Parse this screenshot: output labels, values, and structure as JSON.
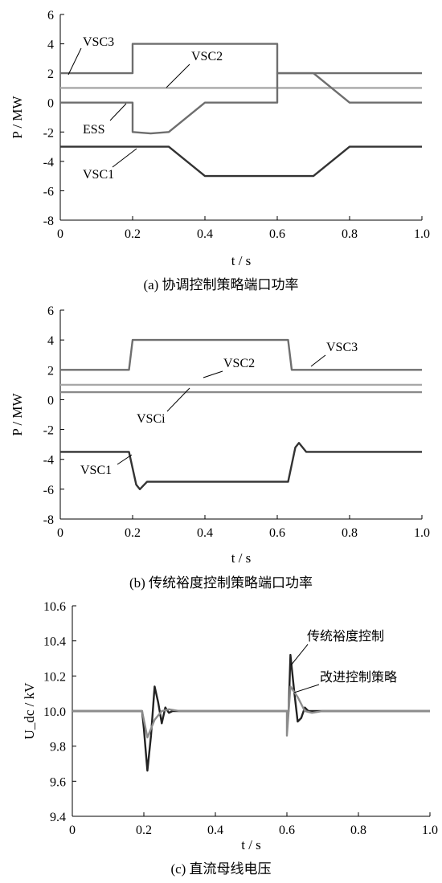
{
  "chart_data": [
    {
      "type": "line",
      "caption": "(a)  协调控制策略端口功率",
      "xlabel": "t / s",
      "ylabel": "P / MW",
      "xlim": [
        0,
        1.0
      ],
      "ylim": [
        -8,
        6
      ],
      "xticks": [
        "0",
        "0.2",
        "0.4",
        "0.6",
        "0.8",
        "1.0"
      ],
      "yticks": [
        "6",
        "4",
        "2",
        "0",
        "-2",
        "-4",
        "-6",
        "-8"
      ],
      "annotations": [
        "VSC3",
        "VSC2",
        "ESS",
        "VSC1"
      ],
      "series": [
        {
          "name": "VSC3",
          "color": "#6e6e6e",
          "x": [
            0,
            0.2,
            0.2,
            0.6,
            0.6,
            1.0
          ],
          "y": [
            2,
            2,
            4,
            4,
            2,
            2
          ]
        },
        {
          "name": "VSC2",
          "color": "#a8a8a8",
          "x": [
            0,
            1.0
          ],
          "y": [
            1,
            1
          ]
        },
        {
          "name": "ESS",
          "color": "#6e6e6e",
          "x": [
            0,
            0.2,
            0.2,
            0.25,
            0.3,
            0.4,
            0.6,
            0.6,
            0.7,
            0.8,
            1.0
          ],
          "y": [
            0,
            0,
            -2,
            -2.1,
            -2,
            0,
            0,
            2,
            2,
            0,
            0
          ]
        },
        {
          "name": "VSC1",
          "color": "#333333",
          "x": [
            0,
            0.2,
            0.3,
            0.4,
            0.6,
            0.7,
            0.8,
            1.0
          ],
          "y": [
            -3,
            -3,
            -3,
            -5,
            -5,
            -5,
            -3,
            -3
          ]
        }
      ]
    },
    {
      "type": "line",
      "caption": "(b)  传统裕度控制策略端口功率",
      "xlabel": "t / s",
      "ylabel": "P / MW",
      "xlim": [
        0,
        1.0
      ],
      "ylim": [
        -8,
        6
      ],
      "xticks": [
        "0",
        "0.2",
        "0.4",
        "0.6",
        "0.8",
        "1.0"
      ],
      "yticks": [
        "6",
        "4",
        "2",
        "0",
        "-2",
        "-4",
        "-6",
        "-8"
      ],
      "annotations": [
        "VSC2",
        "VSC3",
        "VSCi",
        "VSC1"
      ],
      "series": [
        {
          "name": "VSC3",
          "color": "#6e6e6e",
          "x": [
            0,
            0.19,
            0.2,
            0.63,
            0.64,
            1.0
          ],
          "y": [
            2,
            2,
            4,
            4,
            2,
            2
          ]
        },
        {
          "name": "VSC2",
          "color": "#a8a8a8",
          "x": [
            0,
            1.0
          ],
          "y": [
            1,
            1
          ]
        },
        {
          "name": "VSCi",
          "color": "#8a8a8a",
          "x": [
            0,
            1.0
          ],
          "y": [
            0.5,
            0.5
          ]
        },
        {
          "name": "VSC1",
          "color": "#333333",
          "x": [
            0,
            0.19,
            0.21,
            0.22,
            0.24,
            0.63,
            0.65,
            0.66,
            0.68,
            1.0
          ],
          "y": [
            -3.5,
            -3.5,
            -5.7,
            -6,
            -5.5,
            -5.5,
            -3.2,
            -2.9,
            -3.5,
            -3.5
          ]
        }
      ]
    },
    {
      "type": "line",
      "caption": "(c)  直流母线电压",
      "xlabel": "t / s",
      "ylabel": "U_dc / kV",
      "xlim": [
        0,
        1.0
      ],
      "ylim": [
        9.4,
        10.6
      ],
      "xticks": [
        "0",
        "0.2",
        "0.4",
        "0.6",
        "0.8",
        "1.0"
      ],
      "yticks": [
        "10.6",
        "10.4",
        "10.2",
        "10.0",
        "9.8",
        "9.6",
        "9.4"
      ],
      "annotations": [
        "传统裕度控制",
        "改进控制策略"
      ],
      "series": [
        {
          "name": "传统裕度控制",
          "color": "#222222",
          "x": [
            0,
            0.195,
            0.2,
            0.21,
            0.22,
            0.23,
            0.24,
            0.25,
            0.26,
            0.27,
            0.28,
            0.6,
            0.605,
            0.61,
            0.62,
            0.63,
            0.64,
            0.65,
            0.66,
            0.67,
            1.0
          ],
          "y": [
            10.0,
            10.0,
            9.9,
            9.66,
            9.86,
            10.14,
            10.05,
            9.93,
            10.02,
            9.99,
            10.0,
            10.0,
            10.0,
            10.32,
            10.12,
            9.94,
            9.96,
            10.02,
            10.0,
            10.0,
            10.0
          ]
        },
        {
          "name": "改进控制策略",
          "color": "#8c8c8c",
          "x": [
            0,
            0.195,
            0.2,
            0.21,
            0.23,
            0.25,
            0.27,
            0.3,
            0.6,
            0.6,
            0.61,
            0.63,
            0.65,
            0.67,
            0.7,
            1.0
          ],
          "y": [
            10.0,
            10.0,
            9.95,
            9.85,
            9.95,
            10.0,
            10.01,
            10.0,
            10.0,
            9.86,
            10.14,
            10.08,
            10.0,
            9.99,
            10.0,
            10.0
          ]
        }
      ]
    }
  ]
}
